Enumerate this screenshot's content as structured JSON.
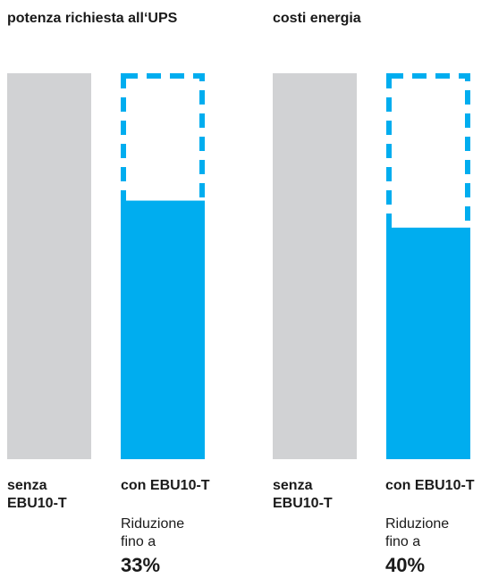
{
  "colors": {
    "baseline_bar": "#d1d2d4",
    "reduced_bar": "#00adef",
    "dashed_outline": "#00adef",
    "text": "#1a1a1a"
  },
  "chart_data": [
    {
      "type": "bar",
      "title": "potenza richiesta all‘UPS",
      "categories": [
        "senza\nEBU10-T",
        "con EBU10-T"
      ],
      "values": [
        100,
        67
      ],
      "ylim": [
        0,
        100
      ],
      "grid": false,
      "annotation": {
        "text": "Riduzione\nfino a",
        "value_label": "33%",
        "reduction_percent": 33
      }
    },
    {
      "type": "bar",
      "title": "costi energia",
      "categories": [
        "senza\nEBU10-T",
        "con EBU10-T"
      ],
      "values": [
        100,
        60
      ],
      "ylim": [
        0,
        100
      ],
      "grid": false,
      "annotation": {
        "text": "Riduzione\nfino a",
        "value_label": "40%",
        "reduction_percent": 40
      }
    }
  ]
}
